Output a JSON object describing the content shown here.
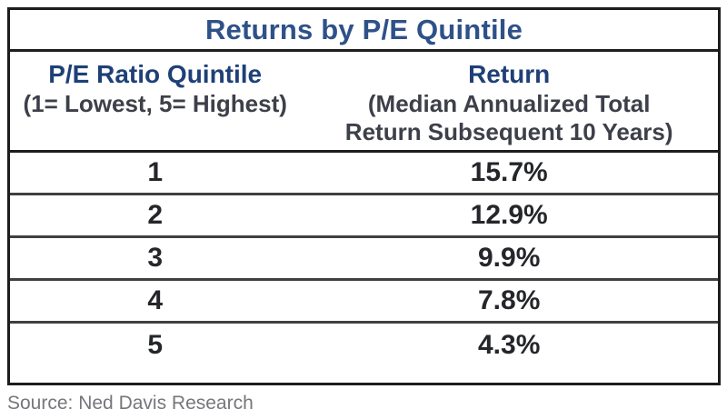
{
  "table": {
    "title": "Returns by P/E Quintile",
    "header": {
      "left_label": "P/E Ratio Quintile",
      "left_sub": "(1= Lowest, 5= Highest)",
      "right_label": "Return",
      "right_sub_line1": "(Median Annualized Total",
      "right_sub_line2": "Return Subsequent 10 Years)"
    },
    "rows": [
      {
        "quintile": "1",
        "return": "15.7%"
      },
      {
        "quintile": "2",
        "return": "12.9%"
      },
      {
        "quintile": "3",
        "return": "9.9%"
      },
      {
        "quintile": "4",
        "return": "7.8%"
      },
      {
        "quintile": "5",
        "return": "4.3%"
      }
    ]
  },
  "source": "Source: Ned Davis Research",
  "colors": {
    "title_blue": "#2e5189",
    "header_blue": "#1f4077",
    "subtext_charcoal": "#3d4049",
    "data_black": "#25262a",
    "frame_black": "#1d1d1f",
    "row_separator_gray": "#404040",
    "source_gray": "#76777b"
  },
  "chart_data": {
    "type": "table",
    "title": "Returns by P/E Quintile",
    "columns": [
      "P/E Ratio Quintile (1= Lowest, 5= Highest)",
      "Return (Median Annualized Total Return Subsequent 10 Years)"
    ],
    "quintiles": [
      1,
      2,
      3,
      4,
      5
    ],
    "returns_pct": [
      15.7,
      12.9,
      9.9,
      7.8,
      4.3
    ],
    "source": "Source: Ned Davis Research"
  }
}
